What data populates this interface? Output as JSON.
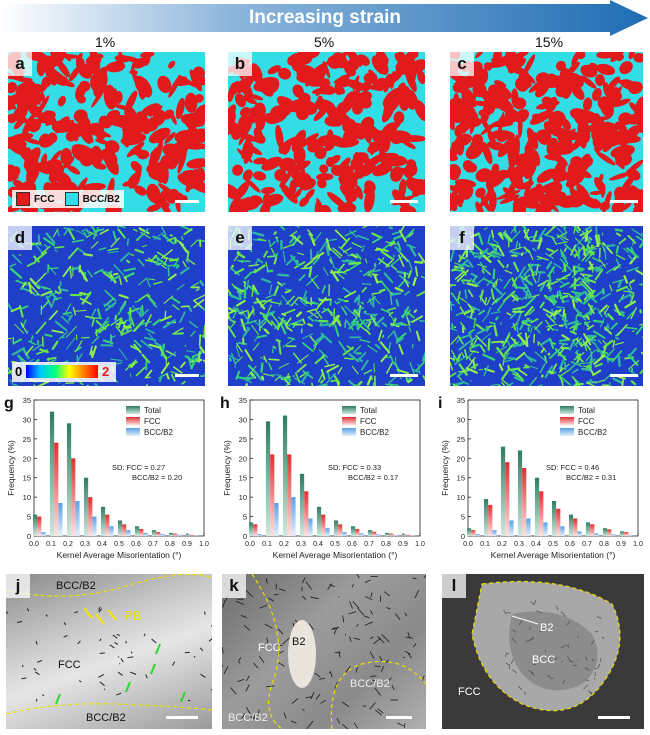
{
  "header": {
    "arrow_label": "Increasing strain",
    "strains": [
      "1%",
      "5%",
      "15%"
    ]
  },
  "phase_maps": {
    "labels": [
      "a",
      "b",
      "c"
    ],
    "legend": {
      "fcc": "FCC",
      "bcc": "BCC/B2"
    },
    "colors": {
      "fcc": "#e31a1c",
      "bcc": "#33dde6"
    },
    "red_fraction": [
      0.62,
      0.6,
      0.7
    ]
  },
  "kam_maps": {
    "labels": [
      "d",
      "e",
      "f"
    ],
    "colorbar_min": "0",
    "colorbar_max": "2",
    "green_fraction": [
      0.3,
      0.38,
      0.5
    ]
  },
  "tem": {
    "labels": [
      "j",
      "k",
      "l"
    ],
    "j": {
      "top": "BCC/B2",
      "pb": "PB",
      "mid": "FCC",
      "bottom": "BCC/B2"
    },
    "k": {
      "fcc": "FCC",
      "b2": "B2",
      "bcc_right": "BCC/B2",
      "bcc_bottom": "BCC/B2"
    },
    "l": {
      "b2": "B2",
      "bcc": "BCC",
      "fcc": "FCC"
    }
  },
  "chart_data": [
    {
      "type": "bar",
      "panel": "g",
      "xlabel": "Kernel Average Misorientation (°)",
      "ylabel": "Frequency (%)",
      "xlim": [
        0.0,
        1.0
      ],
      "ylim": [
        0,
        35
      ],
      "xticks": [
        "0.0",
        "0.1",
        "0.2",
        "0.3",
        "0.4",
        "0.5",
        "0.6",
        "0.7",
        "0.8",
        "0.9",
        "1.0"
      ],
      "yticks": [
        "0",
        "5",
        "10",
        "15",
        "20",
        "25",
        "30",
        "35"
      ],
      "x": [
        0.025,
        0.125,
        0.225,
        0.325,
        0.425,
        0.525,
        0.625,
        0.725,
        0.825,
        0.925
      ],
      "series": [
        {
          "name": "Total",
          "values": [
            5.5,
            32,
            29,
            15,
            7.5,
            4,
            2.5,
            1.5,
            0.8,
            0.4
          ]
        },
        {
          "name": "FCC",
          "values": [
            5,
            24,
            20,
            10,
            5.5,
            3,
            1.8,
            1,
            0.6,
            0.3
          ]
        },
        {
          "name": "BCC/B2",
          "values": [
            1,
            8.5,
            9,
            5,
            2.5,
            1.5,
            0.8,
            0.5,
            0.3,
            0.2
          ]
        }
      ],
      "annotation_line1": "SD: FCC = 0.27",
      "annotation_line2": "BCC/B2 = 0.20"
    },
    {
      "type": "bar",
      "panel": "h",
      "xlabel": "Kernel Average Misorientation (°)",
      "ylabel": "Frequency (%)",
      "xlim": [
        0.0,
        1.0
      ],
      "ylim": [
        0,
        35
      ],
      "xticks": [
        "0.0",
        "0.1",
        "0.2",
        "0.3",
        "0.4",
        "0.5",
        "0.6",
        "0.7",
        "0.8",
        "0.9",
        "1.0"
      ],
      "yticks": [
        "0",
        "5",
        "10",
        "15",
        "20",
        "25",
        "30",
        "35"
      ],
      "x": [
        0.025,
        0.125,
        0.225,
        0.325,
        0.425,
        0.525,
        0.625,
        0.725,
        0.825,
        0.925
      ],
      "series": [
        {
          "name": "Total",
          "values": [
            3.5,
            29.5,
            31,
            16,
            7.5,
            4,
            2.5,
            1.5,
            0.8,
            0.4
          ]
        },
        {
          "name": "FCC",
          "values": [
            3,
            21,
            21,
            11.5,
            5.5,
            3,
            1.8,
            1.1,
            0.6,
            0.3
          ]
        },
        {
          "name": "BCC/B2",
          "values": [
            0.5,
            8.5,
            10,
            4.5,
            2,
            1,
            0.7,
            0.4,
            0.2,
            0.1
          ]
        }
      ],
      "annotation_line1": "SD: FCC = 0.33",
      "annotation_line2": "BCC/B2 = 0.17"
    },
    {
      "type": "bar",
      "panel": "i",
      "xlabel": "Kernel Average Misorientation (°)",
      "ylabel": "Frequency (%)",
      "xlim": [
        0.0,
        1.0
      ],
      "ylim": [
        0,
        35
      ],
      "xticks": [
        "0.0",
        "0.1",
        "0.2",
        "0.3",
        "0.4",
        "0.5",
        "0.6",
        "0.7",
        "0.8",
        "0.9",
        "1.0"
      ],
      "yticks": [
        "0",
        "5",
        "10",
        "15",
        "20",
        "25",
        "30",
        "35"
      ],
      "x": [
        0.025,
        0.125,
        0.225,
        0.325,
        0.425,
        0.525,
        0.625,
        0.725,
        0.825,
        0.925
      ],
      "series": [
        {
          "name": "Total",
          "values": [
            2,
            9.5,
            23,
            22,
            15,
            9,
            5.5,
            3.5,
            2,
            1.2
          ]
        },
        {
          "name": "FCC",
          "values": [
            1.5,
            8,
            19,
            17.5,
            11.5,
            7,
            4.5,
            3,
            1.7,
            1
          ]
        },
        {
          "name": "BCC/B2",
          "values": [
            0.5,
            1.5,
            4,
            4.5,
            3.5,
            2.5,
            1.2,
            0.7,
            0.4,
            0.2
          ]
        }
      ],
      "annotation_line1": "SD: FCC = 0.46",
      "annotation_line2": "BCC/B2 = 0.31"
    }
  ]
}
